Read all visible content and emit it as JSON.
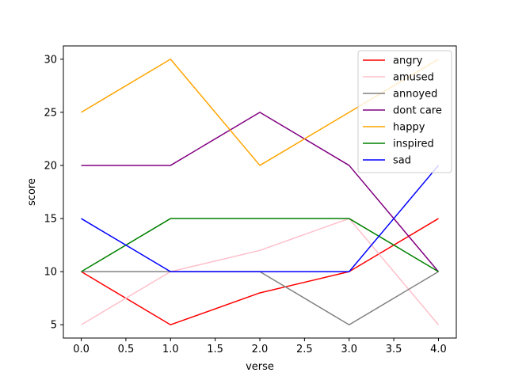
{
  "chart_data": {
    "type": "line",
    "title": "",
    "xlabel": "verse",
    "ylabel": "score",
    "xlim": [
      -0.2,
      4.2
    ],
    "ylim": [
      3.75,
      31.25
    ],
    "xticks": [
      0.0,
      0.5,
      1.0,
      1.5,
      2.0,
      2.5,
      3.0,
      3.5,
      4.0
    ],
    "xtick_labels": [
      "0.0",
      "0.5",
      "1.0",
      "1.5",
      "2.0",
      "2.5",
      "3.0",
      "3.5",
      "4.0"
    ],
    "yticks": [
      5,
      10,
      15,
      20,
      25,
      30
    ],
    "ytick_labels": [
      "5",
      "10",
      "15",
      "20",
      "25",
      "30"
    ],
    "grid": false,
    "legend": "top-right",
    "x": [
      0,
      1,
      2,
      3,
      4
    ],
    "series": [
      {
        "name": "angry",
        "color": "#ff0000",
        "values": [
          10,
          5,
          8,
          10,
          15
        ]
      },
      {
        "name": "amused",
        "color": "#ffc0cb",
        "values": [
          5,
          10,
          12,
          15,
          5
        ]
      },
      {
        "name": "annoyed",
        "color": "#808080",
        "values": [
          10,
          10,
          10,
          5,
          10
        ]
      },
      {
        "name": "dont care",
        "color": "#800080",
        "values": [
          20,
          20,
          25,
          20,
          10
        ]
      },
      {
        "name": "happy",
        "color": "#ffa500",
        "values": [
          25,
          30,
          20,
          25,
          30
        ]
      },
      {
        "name": "inspired",
        "color": "#008000",
        "values": [
          10,
          15,
          15,
          15,
          10
        ]
      },
      {
        "name": "sad",
        "color": "#0000ff",
        "values": [
          15,
          10,
          10,
          10,
          20
        ]
      }
    ]
  }
}
